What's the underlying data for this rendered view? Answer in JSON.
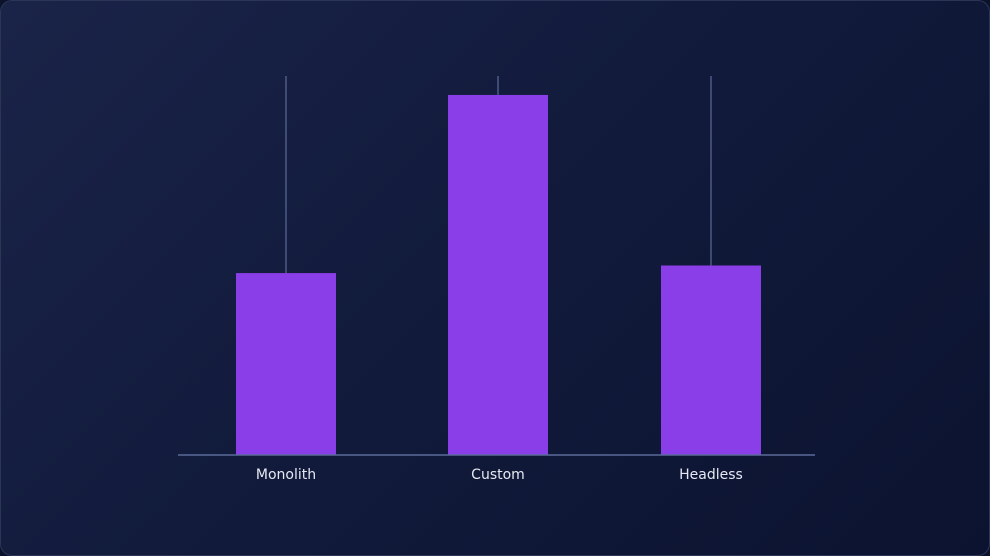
{
  "chart_data": {
    "type": "bar",
    "title": "",
    "xlabel": "",
    "ylabel": "",
    "categories": [
      "Monolith",
      "Custom",
      "Headless"
    ],
    "values": [
      48,
      95,
      50
    ],
    "ylim": [
      0,
      100
    ],
    "grid": false,
    "legend": "none",
    "colors": {
      "bar": "#8a3ee8",
      "axis": "#5b6a9a",
      "guide": "#5b6a9a",
      "label": "#e6e9f3"
    }
  }
}
